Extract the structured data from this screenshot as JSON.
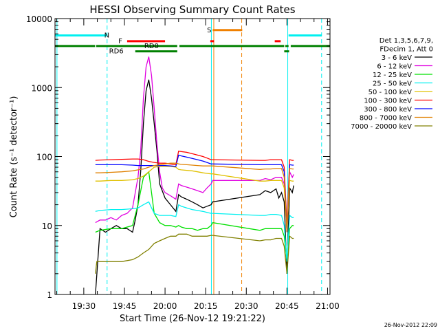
{
  "chart_data": {
    "type": "line",
    "title": "HESSI Observing Summary Count Rates",
    "xlabel": "Start Time (26-Nov-12 19:21:22)",
    "ylabel": "Count Rate (s⁻¹ detector⁻¹)",
    "y_scale": "log",
    "ylim": [
      1,
      10000
    ],
    "xlim_minutes": [
      19.37,
      120.9
    ],
    "x_ticks": [
      {
        "t": 30,
        "label": "19:30"
      },
      {
        "t": 45,
        "label": "19:45"
      },
      {
        "t": 60,
        "label": "20:00"
      },
      {
        "t": 75,
        "label": "20:15"
      },
      {
        "t": 90,
        "label": "20:30"
      },
      {
        "t": 105,
        "label": "20:45"
      },
      {
        "t": 120,
        "label": "21:00"
      }
    ],
    "y_ticks": [
      {
        "v": 1,
        "label": "1"
      },
      {
        "v": 10,
        "label": "10"
      },
      {
        "v": 100,
        "label": "100"
      },
      {
        "v": 1000,
        "label": "1000"
      },
      {
        "v": 10000,
        "label": "10000"
      }
    ],
    "legend_header": [
      "Det 1,3,5,6,7,9,",
      "FDecim 1, Att 0"
    ],
    "legend_position": "right",
    "timestamp": "26-Nov-2012 22:09",
    "series": [
      {
        "name": "3 - 6 keV",
        "color": "#000000",
        "x": [
          34.3,
          36,
          38,
          40,
          42,
          44,
          46,
          48,
          49,
          50,
          51,
          52,
          53,
          54,
          55,
          56,
          57,
          58,
          60,
          62,
          64,
          65,
          66,
          68,
          70,
          72,
          74,
          75.5,
          77,
          77.6,
          95,
          97,
          99,
          101,
          102,
          103,
          104,
          105,
          106,
          107,
          107.5
        ],
        "y": [
          1,
          9,
          8,
          9,
          10,
          9,
          9,
          8,
          12,
          20,
          60,
          300,
          900,
          1300,
          700,
          300,
          120,
          40,
          25,
          20,
          16,
          28,
          26,
          24,
          22,
          20,
          18,
          19,
          20,
          22,
          28,
          32,
          30,
          34,
          25,
          30,
          22,
          2,
          35,
          30,
          38
        ]
      },
      {
        "name": "6 - 12 keV",
        "color": "#e000e0",
        "x": [
          34.3,
          36,
          38,
          40,
          42,
          44,
          46,
          48,
          50,
          51,
          52,
          53,
          54,
          55,
          56,
          57,
          58,
          59,
          60,
          62,
          64,
          65,
          66,
          68,
          70,
          72,
          74,
          75.5,
          77,
          77.6,
          95,
          97,
          99,
          101,
          103,
          104,
          105,
          106,
          107,
          107.5
        ],
        "y": [
          11,
          12,
          12,
          13,
          12,
          14,
          15,
          18,
          50,
          120,
          700,
          2000,
          2800,
          1500,
          500,
          150,
          60,
          35,
          30,
          27,
          24,
          40,
          38,
          36,
          34,
          32,
          30,
          35,
          40,
          45,
          45,
          48,
          46,
          50,
          50,
          40,
          8,
          60,
          50,
          55
        ]
      },
      {
        "name": "12 - 25 keV",
        "color": "#00e000",
        "x": [
          34.3,
          36,
          40,
          44,
          48,
          50,
          52,
          54,
          55,
          56,
          58,
          60,
          62,
          64,
          65,
          66,
          68,
          70,
          72,
          74,
          75.5,
          77,
          77.6,
          95,
          97,
          99,
          101,
          103,
          104,
          105,
          106,
          107,
          107.5
        ],
        "y": [
          8,
          8.5,
          9,
          9,
          10,
          20,
          50,
          60,
          30,
          15,
          11,
          10,
          10,
          9.5,
          10,
          9.5,
          9,
          9,
          8.5,
          9,
          9,
          10,
          11,
          8.5,
          9,
          9,
          9,
          9,
          7,
          3,
          9,
          10,
          10
        ]
      },
      {
        "name": "25 - 50 keV",
        "color": "#00f0f0",
        "x": [
          34.3,
          36,
          40,
          44,
          48,
          50,
          52,
          54,
          55,
          56,
          58,
          60,
          62,
          64,
          65,
          66,
          68,
          70,
          72,
          74,
          75.5,
          77,
          77.6,
          95,
          97,
          99,
          101,
          103,
          104,
          105,
          106,
          107,
          107.5
        ],
        "y": [
          16,
          16.5,
          17,
          17,
          17.5,
          18,
          20,
          22,
          18,
          15,
          14,
          14,
          14,
          13.5,
          20,
          19,
          18,
          17,
          16.5,
          16,
          15.5,
          15,
          15,
          14,
          14,
          14.5,
          14.5,
          14,
          10,
          3,
          14,
          13,
          13
        ]
      },
      {
        "name": "50 - 100 keV",
        "color": "#e0c000",
        "x": [
          34.3,
          36,
          40,
          44,
          48,
          50,
          52,
          54,
          56,
          58,
          60,
          62,
          64,
          65,
          66,
          68,
          70,
          72,
          74,
          75.5,
          77,
          77.6,
          95,
          97,
          99,
          101,
          103,
          104,
          105,
          106,
          107,
          107.5
        ],
        "y": [
          44,
          44,
          45,
          45,
          46,
          48,
          52,
          60,
          70,
          72,
          72,
          72,
          70,
          65,
          64,
          63,
          62,
          60,
          58,
          57,
          56,
          56,
          44,
          44,
          45,
          45,
          45,
          35,
          8,
          45,
          44,
          44
        ]
      },
      {
        "name": "100 - 300 keV",
        "color": "#ff0000",
        "x": [
          34.3,
          36,
          40,
          44,
          48,
          50,
          52,
          54,
          56,
          58,
          60,
          62,
          64,
          65,
          66,
          68,
          70,
          72,
          74,
          75.5,
          77,
          77.6,
          95,
          97,
          99,
          101,
          103,
          104,
          105,
          106,
          107,
          107.5
        ],
        "y": [
          88,
          89,
          90,
          91,
          92,
          92,
          90,
          85,
          82,
          80,
          80,
          78,
          76,
          120,
          118,
          115,
          110,
          105,
          100,
          95,
          90,
          90,
          88,
          88,
          90,
          90,
          90,
          70,
          10,
          90,
          88,
          88
        ]
      },
      {
        "name": "300 - 800 keV",
        "color": "#0000ff",
        "x": [
          34.3,
          36,
          40,
          44,
          48,
          50,
          52,
          54,
          56,
          58,
          60,
          62,
          64,
          65,
          66,
          68,
          70,
          72,
          74,
          75.5,
          77,
          77.6,
          95,
          97,
          99,
          101,
          103,
          104,
          105,
          106,
          107,
          107.5
        ],
        "y": [
          76,
          76,
          76,
          76,
          75,
          74,
          74,
          74,
          74,
          74,
          74,
          73,
          72,
          105,
          102,
          98,
          94,
          90,
          86,
          82,
          78,
          78,
          76,
          76,
          76,
          76,
          76,
          60,
          8,
          76,
          75,
          75
        ]
      },
      {
        "name": "800 - 7000 keV",
        "color": "#e08000",
        "x": [
          34.3,
          36,
          40,
          44,
          48,
          50,
          52,
          54,
          56,
          58,
          60,
          62,
          64,
          65,
          66,
          68,
          70,
          72,
          74,
          75.5,
          77,
          77.6,
          95,
          97,
          99,
          101,
          103,
          104,
          105,
          106,
          107,
          107.5
        ],
        "y": [
          58,
          58,
          59,
          60,
          62,
          64,
          66,
          70,
          74,
          76,
          78,
          80,
          80,
          78,
          77,
          76,
          75,
          74,
          73,
          73,
          73,
          73,
          65,
          66,
          66,
          67,
          67,
          50,
          8,
          67,
          66,
          66
        ]
      },
      {
        "name": "7000 - 20000 keV",
        "color": "#808000",
        "x": [
          34.3,
          34.8,
          36,
          40,
          44,
          48,
          50,
          52,
          54,
          56,
          58,
          60,
          62,
          64,
          65,
          66,
          68,
          70,
          72,
          74,
          75.5,
          77,
          77.6,
          95,
          97,
          99,
          101,
          103,
          104,
          105,
          106,
          107,
          107.5
        ],
        "y": [
          2,
          3,
          3,
          3,
          3,
          3.2,
          3.5,
          4,
          4.5,
          5.5,
          6,
          6.5,
          7,
          7,
          7.5,
          7.5,
          7.5,
          7,
          7,
          7,
          7,
          7.2,
          7.2,
          6,
          6.2,
          6.2,
          6.5,
          6.5,
          5,
          2,
          7,
          6.5,
          6.5
        ]
      }
    ],
    "state_flags": [
      {
        "name": "N",
        "color": "#00f0f0",
        "level": 5700,
        "label_t": 38.5,
        "segments": [
          [
            19.37,
            38.6
          ],
          [
            105.6,
            117.8
          ]
        ]
      },
      {
        "name": "S",
        "color": "#f08000",
        "level": 6800,
        "label_t": 76.3,
        "segments": [
          [
            77.6,
            88.5
          ]
        ]
      },
      {
        "name": "F",
        "color": "#ff0000",
        "level": 4700,
        "label_t": 43.5,
        "segments": [
          [
            46,
            60
          ],
          [
            76.7,
            78.1
          ],
          [
            100.5,
            102.7
          ]
        ]
      },
      {
        "name": "RD0",
        "color": "#008000",
        "level": 4000,
        "label_t": 55,
        "segments": [
          [
            19.37,
            34.2
          ],
          [
            34.6,
            64.5
          ],
          [
            65.3,
            104
          ],
          [
            104.4,
            105.6
          ],
          [
            106.4,
            120.9
          ]
        ]
      },
      {
        "name": "RD6",
        "color": "#008000",
        "level": 3350,
        "label_t": 42,
        "segments": [
          [
            49,
            64.5
          ],
          [
            104,
            105.8
          ]
        ]
      }
    ],
    "v_markers": [
      {
        "t": 20.1,
        "color": "#00f0f0",
        "dash": false
      },
      {
        "t": 38.6,
        "color": "#00f0f0",
        "dash": true
      },
      {
        "t": 77.1,
        "color": "#00f0f0",
        "dash": false
      },
      {
        "t": 78.0,
        "color": "#f08000",
        "dash": false
      },
      {
        "t": 88.3,
        "color": "#f08000",
        "dash": true
      },
      {
        "t": 105.3,
        "color": "#00f0f0",
        "dash": false
      },
      {
        "t": 117.8,
        "color": "#00f0f0",
        "dash": true
      }
    ]
  }
}
